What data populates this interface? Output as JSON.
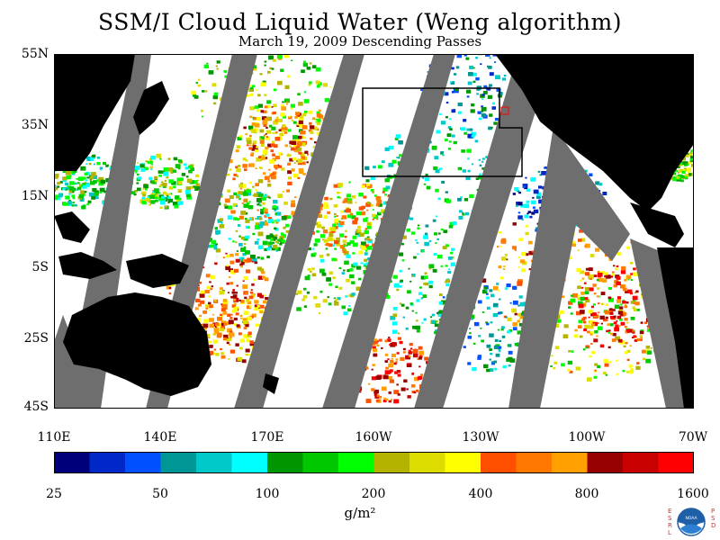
{
  "title": "SSM/I Cloud Liquid Water (Weng algorithm)",
  "subtitle": "March 19, 2009  Descending Passes",
  "lat_labels": [
    "55N",
    "35N",
    "15N",
    "5S",
    "25S",
    "45S"
  ],
  "lon_labels": [
    "110E",
    "140E",
    "170E",
    "160W",
    "130W",
    "100W",
    "70W"
  ],
  "colorbar": {
    "colors": [
      "#00007a",
      "#0028c8",
      "#0050ff",
      "#009696",
      "#00c8c8",
      "#00ffff",
      "#009600",
      "#00c800",
      "#00ff00",
      "#b4b400",
      "#dcdc00",
      "#ffff00",
      "#ff5000",
      "#ff7800",
      "#ffa000",
      "#960000",
      "#c80000",
      "#ff0000"
    ],
    "labels": [
      "25",
      "50",
      "100",
      "200",
      "400",
      "800",
      "1600"
    ],
    "units": "g/m²"
  },
  "logo": {
    "left_text": "ESRL",
    "right_text": "PSD",
    "center_text": "NOAA"
  }
}
